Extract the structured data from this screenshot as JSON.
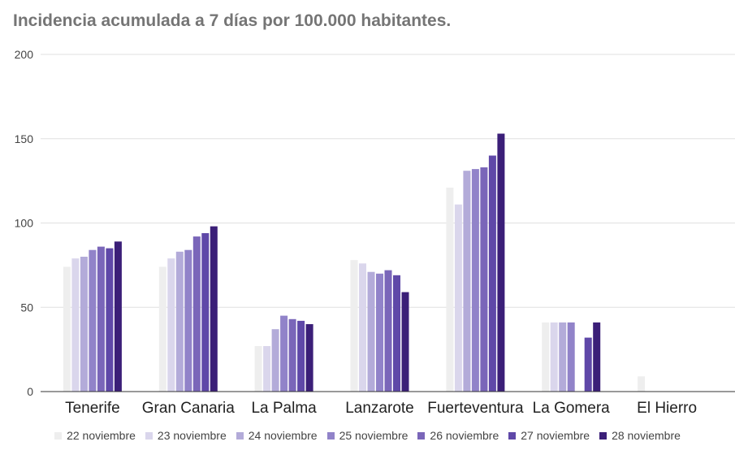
{
  "chart_data": {
    "type": "bar",
    "title": "Incidencia acumulada a 7 días por 100.000 habitantes.",
    "xlabel": "",
    "ylabel": "",
    "ylim": [
      0,
      200
    ],
    "yticks": [
      "0",
      "50",
      "100",
      "150",
      "200"
    ],
    "grid": true,
    "legend_position": "bottom",
    "categories": [
      "Tenerife",
      "Gran Canaria",
      "La Palma",
      "Lanzarote",
      "Fuerteventura",
      "La Gomera",
      "El Hierro"
    ],
    "series": [
      {
        "name": "22 noviembre",
        "color": "#eeeeee",
        "values": [
          74,
          74,
          27,
          78,
          121,
          41,
          9
        ]
      },
      {
        "name": "23 noviembre",
        "color": "#dad6ec",
        "values": [
          79,
          79,
          27,
          76,
          111,
          41,
          0
        ]
      },
      {
        "name": "24 noviembre",
        "color": "#b3abd9",
        "values": [
          80,
          83,
          37,
          71,
          131,
          41,
          0
        ]
      },
      {
        "name": "25 noviembre",
        "color": "#9183c9",
        "values": [
          84,
          84,
          45,
          70,
          132,
          41,
          0
        ]
      },
      {
        "name": "26 noviembre",
        "color": "#7a66b9",
        "values": [
          86,
          92,
          43,
          72,
          133,
          0,
          0
        ]
      },
      {
        "name": "27 noviembre",
        "color": "#5f48a8",
        "values": [
          85,
          94,
          42,
          69,
          140,
          32,
          0
        ]
      },
      {
        "name": "28 noviembre",
        "color": "#3b1f78",
        "values": [
          89,
          98,
          40,
          59,
          153,
          41,
          0
        ]
      }
    ]
  }
}
